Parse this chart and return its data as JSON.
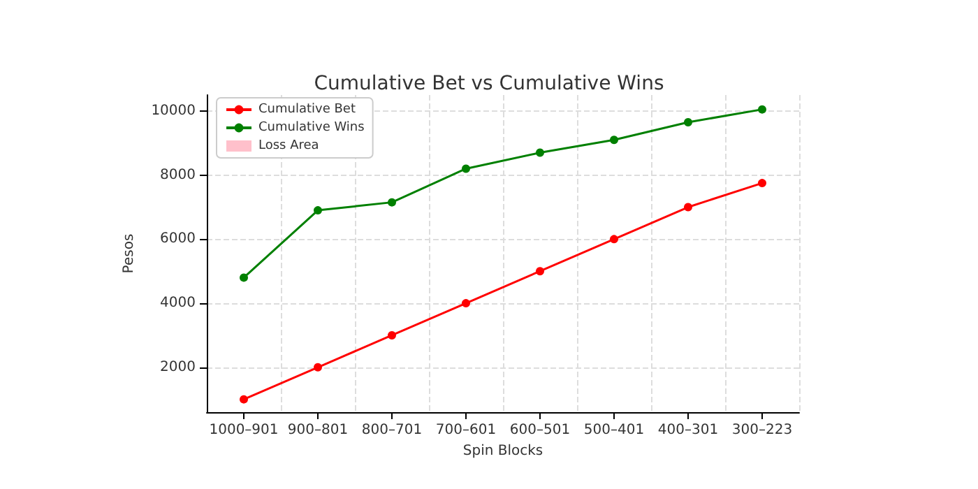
{
  "chart_data": {
    "type": "line",
    "title": "Cumulative Bet vs Cumulative Wins",
    "xlabel": "Spin Blocks",
    "ylabel": "Pesos",
    "categories": [
      "1000–901",
      "900–801",
      "800–701",
      "700–601",
      "600–501",
      "500–401",
      "400–301",
      "300–223"
    ],
    "series": [
      {
        "name": "Cumulative Bet",
        "color": "#ff0000",
        "values": [
          1000,
          2000,
          3000,
          4000,
          5000,
          6000,
          7000,
          7750
        ]
      },
      {
        "name": "Cumulative Wins",
        "color": "#008000",
        "values": [
          4800,
          6900,
          7150,
          8200,
          8700,
          9100,
          9650,
          10050
        ]
      },
      {
        "name": "Loss Area",
        "type": "area",
        "color": "#ffc0cb",
        "values": [
          null,
          null,
          null,
          null,
          null,
          null,
          null,
          null
        ]
      }
    ],
    "ylim": [
      600,
      10500
    ],
    "yticks": [
      2000,
      4000,
      6000,
      8000,
      10000
    ],
    "grid": true,
    "legend": "top left",
    "marker": "circle",
    "line_style": "solid"
  }
}
